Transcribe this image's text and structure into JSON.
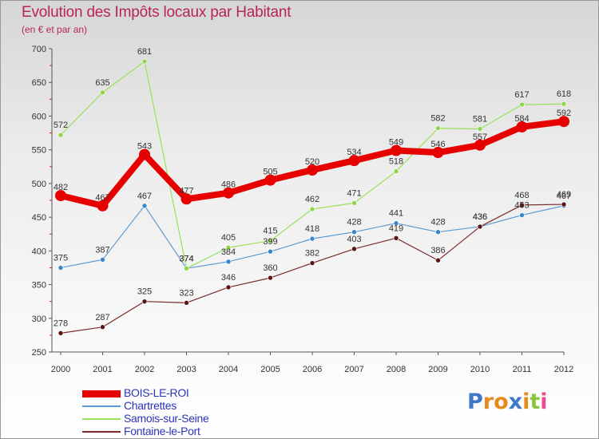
{
  "chart_data": {
    "type": "line",
    "title": "Evolution des Impôts locaux par Habitant",
    "subtitle": "(en € et par an)",
    "xlabel": "",
    "ylabel": "",
    "categories": [
      "2000",
      "2001",
      "2002",
      "2003",
      "2004",
      "2005",
      "2006",
      "2007",
      "2008",
      "2009",
      "2010",
      "2011",
      "2012"
    ],
    "ylim": [
      250,
      700
    ],
    "yticks": [
      250,
      300,
      350,
      400,
      450,
      500,
      550,
      600,
      650,
      700
    ],
    "series": [
      {
        "name": "BOIS-LE-ROI",
        "color": "#e60000",
        "values": [
          482,
          467,
          543,
          477,
          486,
          505,
          520,
          534,
          549,
          546,
          557,
          584,
          592
        ]
      },
      {
        "name": "Chartrettes",
        "color": "#5b9bd5",
        "values": [
          375,
          387,
          467,
          374,
          384,
          399,
          418,
          428,
          441,
          428,
          436,
          453,
          467
        ]
      },
      {
        "name": "Samois-sur-Seine",
        "color": "#9be05a",
        "values": [
          572,
          635,
          681,
          374,
          405,
          415,
          462,
          471,
          518,
          582,
          581,
          617,
          618
        ]
      },
      {
        "name": "Fontaine-le-Port",
        "color": "#7a2a2a",
        "values": [
          278,
          287,
          325,
          323,
          346,
          360,
          382,
          403,
          419,
          386,
          436,
          468,
          469
        ]
      }
    ],
    "legend_position": "bottom-left",
    "grid": false
  },
  "logo": {
    "letters": [
      {
        "char": "P",
        "color": "#3f78c8"
      },
      {
        "char": "r",
        "color": "#e8891e"
      },
      {
        "char": "o",
        "color": "#e8891e"
      },
      {
        "char": "x",
        "color": "#3f78c8"
      },
      {
        "char": "i",
        "color": "#e8891e"
      },
      {
        "char": "t",
        "color": "#8cc63f"
      },
      {
        "char": "i",
        "color": "#e84d8a"
      }
    ]
  }
}
